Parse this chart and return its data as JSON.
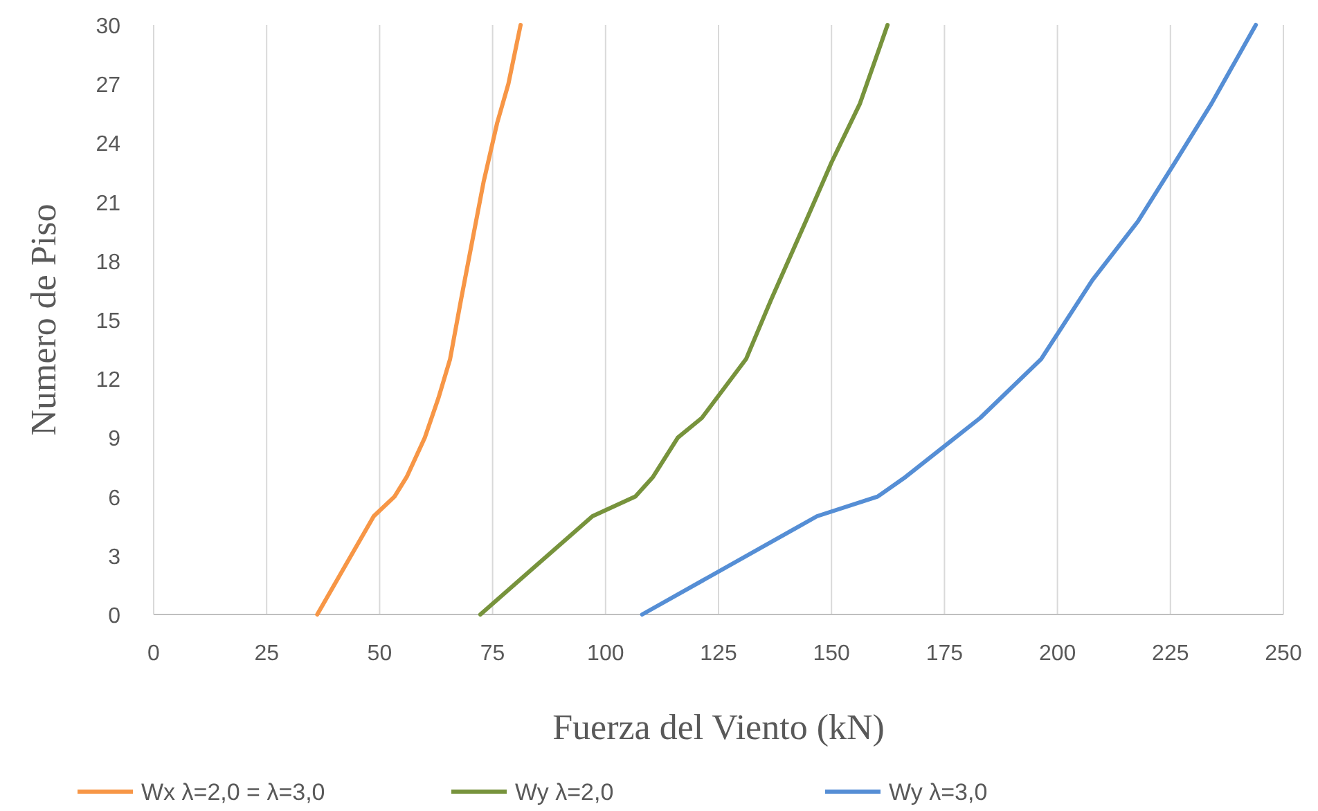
{
  "chart_data": {
    "type": "line",
    "xlabel": "Fuerza del Viento (kN)",
    "ylabel": "Numero de Piso",
    "xlim": [
      0,
      250
    ],
    "xticks": [
      0,
      25,
      50,
      75,
      100,
      125,
      150,
      175,
      200,
      225,
      250
    ],
    "ylim": [
      0,
      30
    ],
    "yticks": [
      0,
      3,
      6,
      9,
      12,
      15,
      18,
      21,
      24,
      27,
      30
    ],
    "grid": "x",
    "legend": "bottom",
    "marker": "none",
    "line_style": "solid",
    "series": [
      {
        "name": "Wx λ=2,0 = λ=3,0",
        "color": "#f79646",
        "x": [
          36.2,
          48.7,
          53.3,
          56,
          60,
          63,
          65.6,
          68,
          70.5,
          73,
          76,
          78.5,
          81.2
        ],
        "values": [
          0,
          5,
          6,
          7,
          9,
          11,
          13,
          16,
          19,
          22,
          25,
          27,
          30
        ]
      },
      {
        "name": "Wy λ=2,0",
        "color": "#77933c",
        "x": [
          72.3,
          97.1,
          106.6,
          110.5,
          116,
          121.3,
          131.1,
          136.6,
          144.3,
          150,
          156.3,
          162.4
        ],
        "values": [
          0,
          5,
          6,
          7,
          9,
          10,
          13,
          16,
          20,
          23,
          26,
          30
        ]
      },
      {
        "name": "Wy λ=3,0",
        "color": "#558ed5",
        "x": [
          108.1,
          146.8,
          160.2,
          166.4,
          177.4,
          182.9,
          196.4,
          207.7,
          217.8,
          226,
          234.1,
          243.9
        ],
        "values": [
          0,
          5,
          6,
          7,
          9,
          10,
          13,
          17,
          20,
          23,
          26,
          30
        ]
      }
    ]
  }
}
